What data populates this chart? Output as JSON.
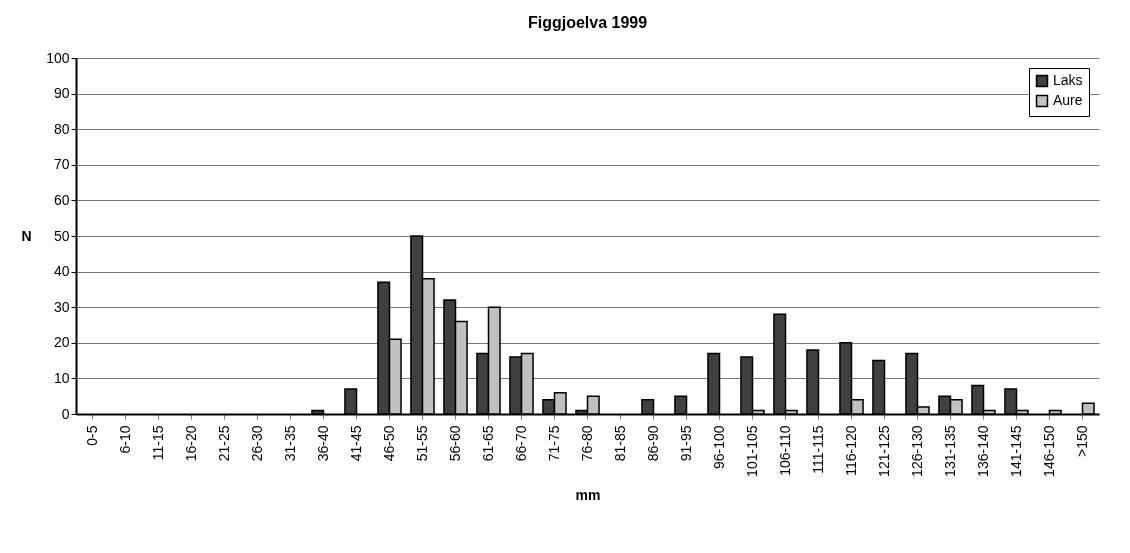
{
  "chart_data": {
    "type": "bar",
    "title": "Figgjoelva 1999",
    "xlabel": "mm",
    "ylabel": "N",
    "categories": [
      "0-5",
      "6-10",
      "11-15",
      "16-20",
      "21-25",
      "26-30",
      "31-35",
      "36-40",
      "41-45",
      "46-50",
      "51-55",
      "56-60",
      "61-65",
      "66-70",
      "71-75",
      "76-80",
      "81-85",
      "86-90",
      "91-95",
      "96-100",
      "101-105",
      "106-110",
      "111-115",
      "116-120",
      "121-125",
      "126-130",
      "131-135",
      "136-140",
      "141-145",
      "146-150",
      ">150"
    ],
    "series": [
      {
        "name": "Laks",
        "color": "#404040",
        "values": [
          0,
          0,
          0,
          0,
          0,
          0,
          0,
          1,
          7,
          37,
          50,
          32,
          17,
          16,
          4,
          1,
          0,
          4,
          5,
          17,
          16,
          28,
          18,
          20,
          15,
          17,
          5,
          8,
          7,
          0,
          0
        ]
      },
      {
        "name": "Aure",
        "color": "#c0c0c0",
        "values": [
          0,
          0,
          0,
          0,
          0,
          0,
          0,
          0,
          0,
          21,
          38,
          26,
          30,
          17,
          6,
          5,
          0,
          0,
          0,
          0,
          1,
          1,
          0,
          4,
          0,
          2,
          4,
          1,
          1,
          1,
          3
        ]
      }
    ],
    "ylim": [
      0,
      100
    ],
    "yticks": [
      0,
      10,
      20,
      30,
      40,
      50,
      60,
      70,
      80,
      90,
      100
    ],
    "grid": "y",
    "legend": "top right"
  }
}
